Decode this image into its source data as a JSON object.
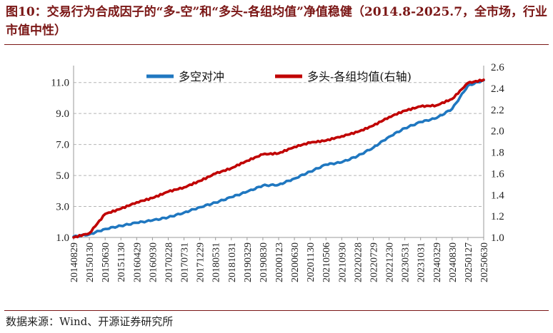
{
  "header": {
    "title": "图10：交易行为合成因子的“多-空”和“多头-各组均值”净值稳健（2014.8-2025.7，全市场，行业市值中性）"
  },
  "footer": {
    "source": "数据来源：Wind、开源证券研究所"
  },
  "chart_data": {
    "type": "line",
    "title": "图10：交易行为合成因子的“多-空”和“多头-各组均值”净值稳健（2014.8-2025.7，全市场，行业市值中性）",
    "x_tick_labels": [
      "20140829",
      "20150130",
      "20150630",
      "20151130",
      "20160429",
      "20160930",
      "20170228",
      "20170731",
      "20171229",
      "20180531",
      "20181031",
      "20190329",
      "20190830",
      "20200123",
      "20200630",
      "20201130",
      "20210506",
      "20210930",
      "20220228",
      "20220729",
      "20221230",
      "20230531",
      "20231031",
      "20240329",
      "20240830",
      "20250127",
      "20250630"
    ],
    "y_left": {
      "ylim": [
        1.0,
        12.0
      ],
      "ticks": [
        "1.0",
        "3.0",
        "5.0",
        "7.0",
        "9.0",
        "11.0"
      ]
    },
    "y_right": {
      "ylim": [
        1.0,
        2.6
      ],
      "ticks": [
        "1.0",
        "1.2",
        "1.4",
        "1.6",
        "1.8",
        "2.0",
        "2.2",
        "2.4",
        "2.6"
      ]
    },
    "grid": "horizontal-dashed",
    "legend": "top-center",
    "series": [
      {
        "name": "多空对冲",
        "axis": "left",
        "color": "#1f77c0",
        "x": [
          "20140829",
          "20150130",
          "20150630",
          "20151130",
          "20160429",
          "20160930",
          "20170228",
          "20170731",
          "20171229",
          "20180531",
          "20181031",
          "20190329",
          "20190830",
          "20200123",
          "20200630",
          "20201130",
          "20210506",
          "20210930",
          "20220228",
          "20220729",
          "20221230",
          "20230531",
          "20231031",
          "20240329",
          "20240830",
          "20250127",
          "20250630"
        ],
        "values": [
          1.05,
          1.2,
          1.55,
          1.75,
          1.95,
          2.1,
          2.3,
          2.6,
          2.95,
          3.25,
          3.6,
          3.95,
          4.35,
          4.4,
          4.8,
          5.25,
          5.7,
          5.85,
          6.25,
          6.8,
          7.5,
          8.05,
          8.45,
          8.7,
          9.3,
          10.8,
          11.15
        ]
      },
      {
        "name": "多头-各组均值(右轴)",
        "axis": "right",
        "color": "#c00000",
        "x": [
          "20140829",
          "20150130",
          "20150630",
          "20151130",
          "20160429",
          "20160930",
          "20170228",
          "20170731",
          "20171229",
          "20180531",
          "20181031",
          "20190329",
          "20190830",
          "20200123",
          "20200630",
          "20201130",
          "20210506",
          "20210930",
          "20220228",
          "20220729",
          "20221230",
          "20230531",
          "20231031",
          "20240329",
          "20240830",
          "20250127",
          "20250630"
        ],
        "values": [
          1.0,
          1.04,
          1.22,
          1.27,
          1.33,
          1.37,
          1.43,
          1.47,
          1.53,
          1.6,
          1.65,
          1.72,
          1.78,
          1.79,
          1.85,
          1.89,
          1.91,
          1.95,
          1.99,
          2.05,
          2.13,
          2.19,
          2.23,
          2.24,
          2.3,
          2.45,
          2.48
        ]
      }
    ]
  }
}
